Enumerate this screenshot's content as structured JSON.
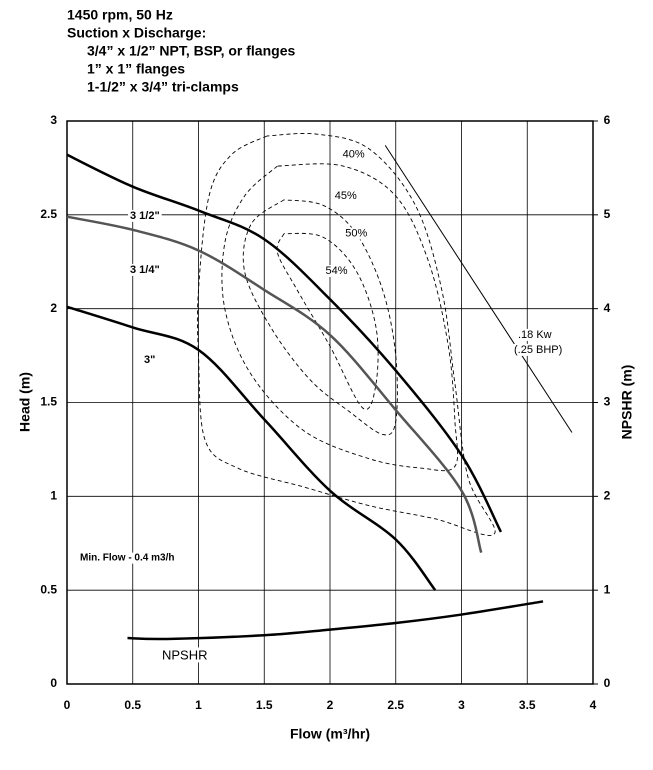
{
  "chart_data": {
    "type": "line",
    "header": [
      "1450 rpm, 50 Hz",
      "Suction x Discharge:",
      "3/4” x 1/2” NPT, BSP, or flanges",
      "1” x 1” flanges",
      "1-1/2” x 3/4” tri-clamps"
    ],
    "xlabel": "Flow (m³/hr)",
    "ylabel": "Head (m)",
    "y2label": "NPSHR (m)",
    "xlim": [
      0,
      4
    ],
    "xticks": [
      0,
      0.5,
      1,
      1.5,
      2,
      2.5,
      3,
      3.5,
      4
    ],
    "ylim": [
      0,
      3
    ],
    "yticks": [
      0,
      0.5,
      1,
      1.5,
      2,
      2.5,
      3
    ],
    "y2lim": [
      0,
      6
    ],
    "y2ticks": [
      0,
      1,
      2,
      3,
      4,
      5,
      6
    ],
    "grid": true,
    "series": [
      {
        "name": "3 1/2\"",
        "color": "#000000",
        "x": [
          0,
          0.5,
          1.01,
          1.5,
          2.0,
          2.5,
          3.0,
          3.3
        ],
        "values": [
          2.82,
          2.65,
          2.52,
          2.37,
          2.05,
          1.67,
          1.22,
          0.81
        ]
      },
      {
        "name": "3 1/4\"",
        "color": "#555555",
        "x": [
          0,
          0.5,
          1.0,
          1.5,
          2.0,
          2.5,
          3.0,
          3.15
        ],
        "values": [
          2.49,
          2.42,
          2.31,
          2.1,
          1.86,
          1.46,
          1.03,
          0.7
        ]
      },
      {
        "name": "3\"",
        "color": "#000000",
        "x": [
          0,
          0.5,
          1.0,
          1.5,
          2.0,
          2.5,
          2.8
        ],
        "values": [
          2.01,
          1.9,
          1.78,
          1.41,
          1.03,
          0.77,
          0.5
        ]
      },
      {
        "name": "NPSHR",
        "color": "#000000",
        "axis": "y2",
        "x": [
          0.46,
          0.76,
          1.5,
          2.0,
          2.5,
          3.0,
          3.62
        ],
        "values": [
          0.49,
          0.48,
          0.52,
          0.58,
          0.65,
          0.74,
          0.88
        ]
      }
    ],
    "contours": [
      {
        "label": "40%",
        "x": [
          1.52,
          1.25,
          1.08,
          1.0,
          1.0,
          1.05,
          1.3,
          1.8,
          2.3,
          2.8,
          3.25,
          3.05,
          2.95,
          2.85,
          2.65,
          2.3,
          1.9,
          1.52
        ],
        "y": [
          2.92,
          2.82,
          2.6,
          2.1,
          1.75,
          1.3,
          1.15,
          1.05,
          0.95,
          0.88,
          0.8,
          1.1,
          1.6,
          2.1,
          2.55,
          2.85,
          2.93,
          2.92
        ]
      },
      {
        "label": "45%",
        "x": [
          1.6,
          1.35,
          1.2,
          1.2,
          1.4,
          1.8,
          2.3,
          2.7,
          2.95,
          2.95,
          2.9,
          2.75,
          2.5,
          2.1,
          1.6
        ],
        "y": [
          2.76,
          2.6,
          2.35,
          2.0,
          1.65,
          1.35,
          1.2,
          1.15,
          1.16,
          1.4,
          1.8,
          2.25,
          2.6,
          2.76,
          2.76
        ]
      },
      {
        "label": "50%",
        "x": [
          1.65,
          1.4,
          1.35,
          1.55,
          1.85,
          2.15,
          2.4,
          2.5,
          2.5,
          2.4,
          2.2,
          1.95,
          1.65
        ],
        "y": [
          2.58,
          2.45,
          2.2,
          1.9,
          1.62,
          1.45,
          1.33,
          1.4,
          1.75,
          2.1,
          2.4,
          2.55,
          2.58
        ]
      },
      {
        "label": "54%",
        "x": [
          1.65,
          1.6,
          1.75,
          2.0,
          2.25,
          2.35,
          2.35,
          2.2,
          1.95,
          1.65
        ],
        "y": [
          2.4,
          2.3,
          2.1,
          1.8,
          1.47,
          1.6,
          1.9,
          2.2,
          2.38,
          2.4
        ]
      }
    ],
    "power_line": {
      "label": [
        ".18 Kw",
        "(.25 BHP)"
      ],
      "x": [
        2.42,
        3.84
      ],
      "y": [
        2.87,
        1.34
      ]
    },
    "annotations": [
      "Min. Flow - 0.4 m3/h"
    ]
  }
}
